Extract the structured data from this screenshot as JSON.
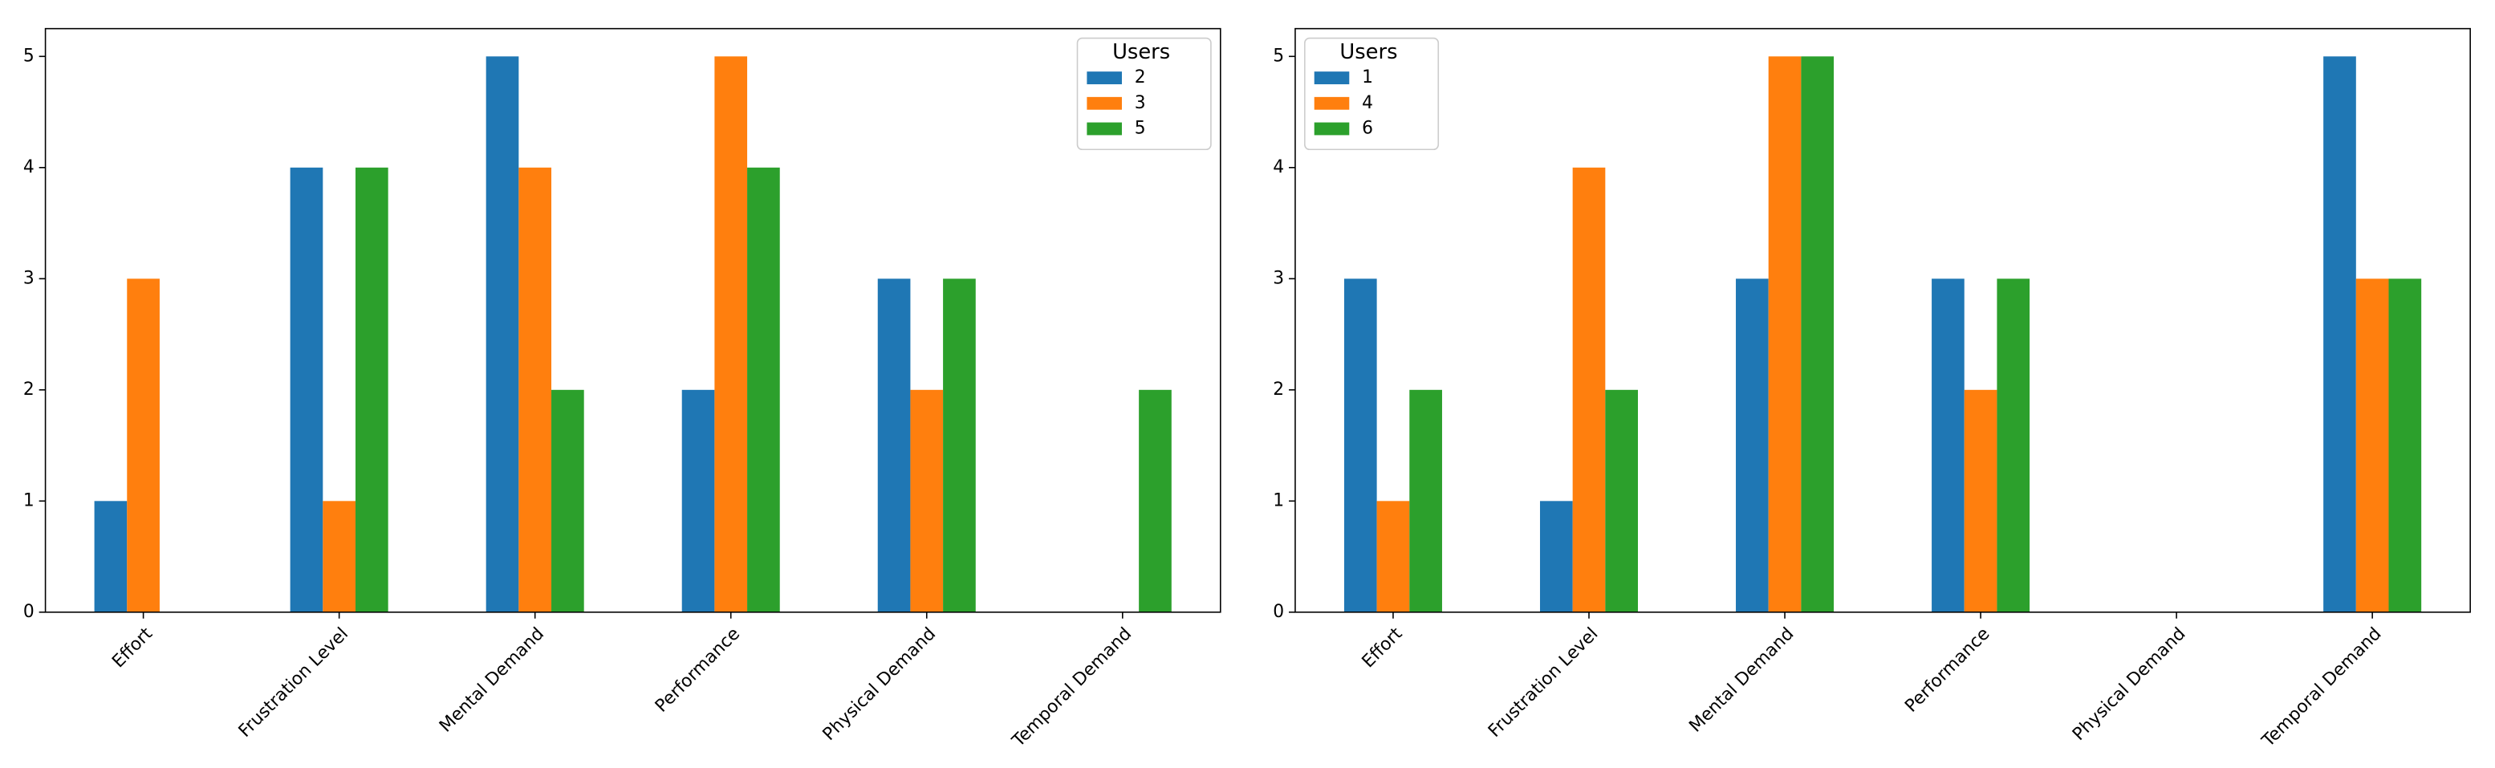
{
  "chart_data": [
    {
      "type": "bar",
      "categories": [
        "Effort",
        "Frustration Level",
        "Mental Demand",
        "Performance",
        "Physical Demand",
        "Temporal Demand"
      ],
      "series": [
        {
          "name": "2",
          "color": "#1f77b4",
          "values": [
            1,
            4,
            5,
            2,
            3,
            0
          ]
        },
        {
          "name": "3",
          "color": "#ff7f0e",
          "values": [
            3,
            1,
            4,
            5,
            2,
            0
          ]
        },
        {
          "name": "5",
          "color": "#2ca02c",
          "values": [
            0,
            4,
            2,
            4,
            3,
            2
          ]
        }
      ],
      "ylim": [
        0,
        5.25
      ],
      "yticks": [
        0,
        1,
        2,
        3,
        4,
        5
      ],
      "legend_title": "Users",
      "legend_loc": "upper right"
    },
    {
      "type": "bar",
      "categories": [
        "Effort",
        "Frustration Level",
        "Mental Demand",
        "Performance",
        "Physical Demand",
        "Temporal Demand"
      ],
      "series": [
        {
          "name": "1",
          "color": "#1f77b4",
          "values": [
            3,
            1,
            3,
            3,
            0,
            5
          ]
        },
        {
          "name": "4",
          "color": "#ff7f0e",
          "values": [
            1,
            4,
            5,
            2,
            0,
            3
          ]
        },
        {
          "name": "6",
          "color": "#2ca02c",
          "values": [
            2,
            2,
            5,
            3,
            0,
            3
          ]
        }
      ],
      "ylim": [
        0,
        5.25
      ],
      "yticks": [
        0,
        1,
        2,
        3,
        4,
        5
      ],
      "legend_title": "Users",
      "legend_loc": "upper left"
    }
  ]
}
